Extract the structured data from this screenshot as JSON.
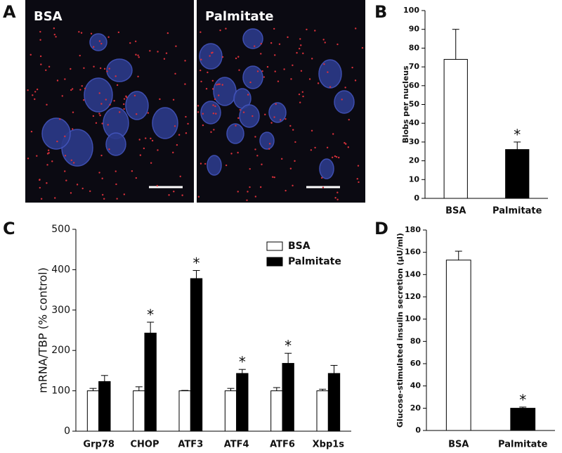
{
  "panel_a": {
    "label": "A",
    "images": [
      "BSA",
      "Palmitate"
    ]
  },
  "chart_data": [
    {
      "type": "bar",
      "label": "B",
      "ylabel": "Blobs per nucleus",
      "categories": [
        "BSA",
        "Palmitate"
      ],
      "values": [
        74,
        26
      ],
      "errors": [
        16,
        4
      ],
      "colors": [
        "#ffffff",
        "#000000"
      ],
      "significant": [
        false,
        true
      ],
      "significance_marker": "*",
      "ylim": [
        0,
        100
      ],
      "yticks": [
        0,
        10,
        20,
        30,
        40,
        50,
        60,
        70,
        80,
        90,
        100
      ]
    },
    {
      "type": "bar",
      "label": "C",
      "ylabel": "mRNA/TBP (% control)",
      "categories": [
        "Grp78",
        "CHOP",
        "ATF3",
        "ATF4",
        "ATF6",
        "Xbp1s"
      ],
      "series": [
        {
          "name": "BSA",
          "color": "#ffffff",
          "values": [
            100,
            100,
            100,
            100,
            100,
            100
          ],
          "errors": [
            6,
            10,
            1,
            6,
            8,
            4
          ],
          "significant": [
            false,
            false,
            false,
            false,
            false,
            false
          ]
        },
        {
          "name": "Palmitate",
          "color": "#000000",
          "values": [
            123,
            243,
            378,
            143,
            168,
            143
          ],
          "errors": [
            15,
            27,
            20,
            10,
            25,
            20
          ],
          "significant": [
            false,
            true,
            true,
            true,
            true,
            false
          ]
        }
      ],
      "significance_marker": "*",
      "legend": "upper right",
      "ylim": [
        0,
        500
      ],
      "yticks": [
        0,
        100,
        200,
        300,
        400,
        500
      ]
    },
    {
      "type": "bar",
      "label": "D",
      "ylabel": "Glucose-stimulated insulin secretion (µU/ml)",
      "categories": [
        "BSA",
        "Palmitate"
      ],
      "values": [
        153,
        20
      ],
      "errors": [
        8,
        1
      ],
      "colors": [
        "#ffffff",
        "#000000"
      ],
      "significant": [
        false,
        true
      ],
      "significance_marker": "*",
      "ylim": [
        0,
        180
      ],
      "yticks": [
        0,
        20,
        40,
        60,
        80,
        100,
        120,
        140,
        160,
        180
      ]
    }
  ]
}
